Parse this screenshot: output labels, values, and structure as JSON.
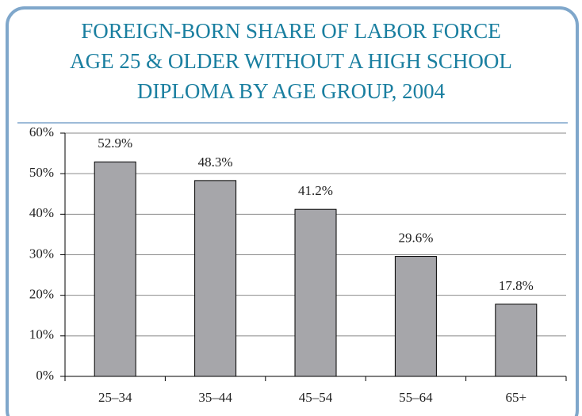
{
  "chart_data": {
    "type": "bar",
    "title": [
      "FOREIGN-BORN SHARE OF LABOR FORCE",
      "AGE 25 & OLDER WITHOUT A HIGH SCHOOL",
      "DIPLOMA BY AGE GROUP, 2004"
    ],
    "categories": [
      "25–34",
      "35–44",
      "45–54",
      "55–64",
      "65+"
    ],
    "values": [
      52.9,
      48.3,
      41.2,
      29.6,
      17.8
    ],
    "value_labels": [
      "52.9%",
      "48.3%",
      "41.2%",
      "29.6%",
      "17.8%"
    ],
    "color": "#a6a6aa",
    "ylim": [
      0,
      60
    ],
    "yticks": [
      {
        "value": 0,
        "label": "0%"
      },
      {
        "value": 10,
        "label": "10%"
      },
      {
        "value": 20,
        "label": "20%"
      },
      {
        "value": 30,
        "label": "30%"
      },
      {
        "value": 40,
        "label": "40%"
      },
      {
        "value": 50,
        "label": "50%"
      },
      {
        "value": 60,
        "label": "60%"
      }
    ],
    "grid": true
  }
}
